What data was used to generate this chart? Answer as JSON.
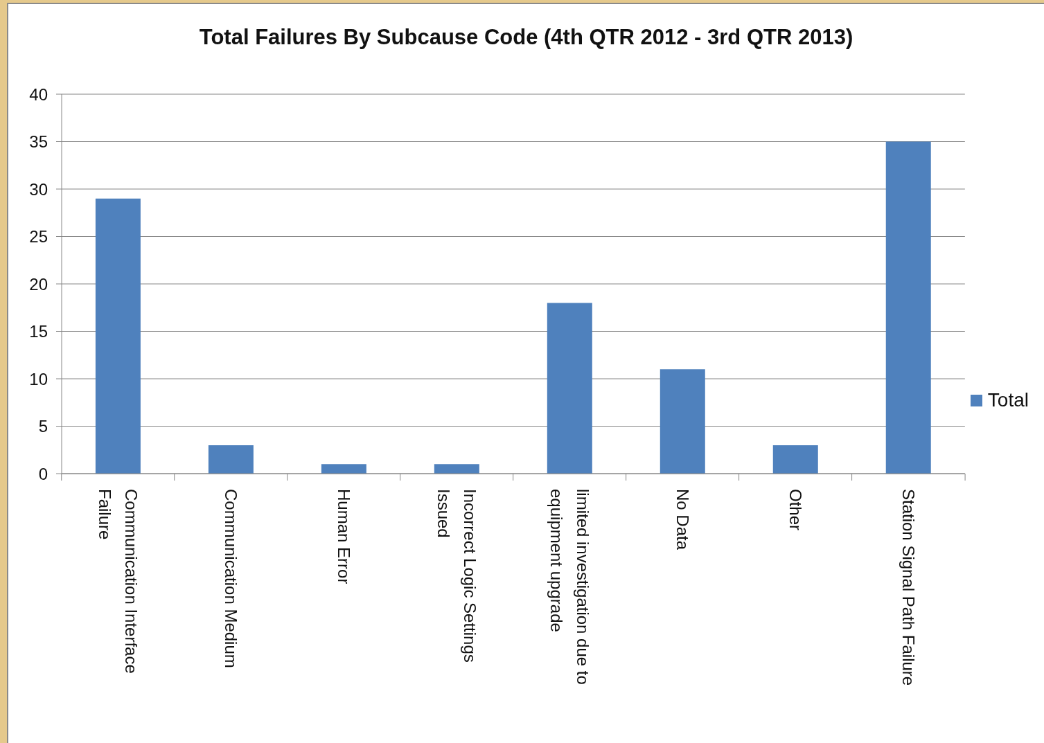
{
  "chart_data": {
    "type": "bar",
    "title": "Total Failures By Subcause Code (4th QTR 2012 - 3rd QTR 2013)",
    "categories": [
      "Communication Interface Failure",
      "Communication Medium",
      "Human Error",
      "Incorrect Logic Settings Issued",
      "limited investigation due to equipment upgrade",
      "No Data",
      "Other",
      "Station Signal Path Failure"
    ],
    "series": [
      {
        "name": "Total",
        "color": "#4f81bd",
        "values": [
          29,
          3,
          1,
          1,
          18,
          11,
          3,
          35
        ]
      }
    ],
    "ylim": [
      0,
      40
    ],
    "yticks": [
      0,
      5,
      10,
      15,
      20,
      25,
      30,
      35,
      40
    ],
    "grid": "y",
    "legend": "right"
  }
}
